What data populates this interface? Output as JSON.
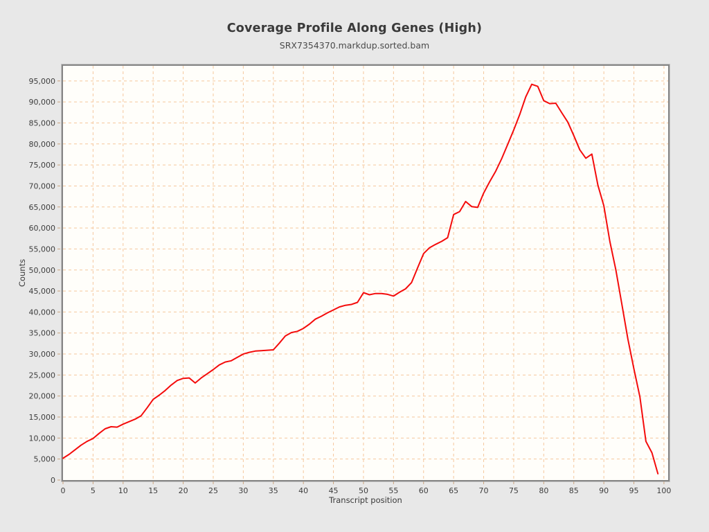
{
  "chart": {
    "title": "Coverage Profile Along Genes (High)",
    "subtitle": "SRX7354370.markdup.sorted.bam",
    "xlabel": "Transcript position",
    "ylabel": "Counts"
  },
  "chart_data": {
    "type": "line",
    "title": "Coverage Profile Along Genes (High)",
    "subtitle": "SRX7354370.markdup.sorted.bam",
    "xlabel": "Transcript position",
    "ylabel": "Counts",
    "x_start": 0,
    "x_step": 1,
    "x": [
      0,
      1,
      2,
      3,
      4,
      5,
      6,
      7,
      8,
      9,
      10,
      11,
      12,
      13,
      14,
      15,
      16,
      17,
      18,
      19,
      20,
      21,
      22,
      23,
      24,
      25,
      26,
      27,
      28,
      29,
      30,
      31,
      32,
      33,
      34,
      35,
      36,
      37,
      38,
      39,
      40,
      41,
      42,
      43,
      44,
      45,
      46,
      47,
      48,
      49,
      50,
      51,
      52,
      53,
      54,
      55,
      56,
      57,
      58,
      59,
      60,
      61,
      62,
      63,
      64,
      65,
      66,
      67,
      68,
      69,
      70,
      71,
      72,
      73,
      74,
      75,
      76,
      77,
      78,
      79,
      80,
      81,
      82,
      83,
      84,
      85,
      86,
      87,
      88,
      89,
      90,
      91,
      92,
      93,
      94,
      95,
      96,
      97,
      98,
      99
    ],
    "values": [
      5200,
      6100,
      7200,
      8300,
      9200,
      9900,
      11100,
      12200,
      12700,
      12600,
      13300,
      13900,
      14500,
      15300,
      17200,
      19200,
      20200,
      21300,
      22600,
      23700,
      24200,
      24300,
      23100,
      24300,
      25300,
      26300,
      27400,
      28100,
      28400,
      29200,
      30000,
      30400,
      30700,
      30800,
      30900,
      31000,
      32600,
      34300,
      35100,
      35400,
      36100,
      37100,
      38300,
      39000,
      39800,
      40500,
      41200,
      41600,
      41800,
      42300,
      44600,
      44100,
      44400,
      44400,
      44200,
      43800,
      44700,
      45500,
      47000,
      50500,
      53900,
      55300,
      56100,
      56800,
      57700,
      63200,
      63900,
      66300,
      65100,
      64900,
      68300,
      71000,
      73500,
      76500,
      79900,
      83300,
      87000,
      91200,
      94200,
      93700,
      90300,
      89600,
      89700,
      87400,
      85200,
      82000,
      78600,
      76600,
      77600,
      70200,
      65300,
      56800,
      50000,
      41800,
      33600,
      26500,
      19800,
      9200,
      6500,
      1500
    ],
    "x_ticks": [
      0,
      5,
      10,
      15,
      20,
      25,
      30,
      35,
      40,
      45,
      50,
      55,
      60,
      65,
      70,
      75,
      80,
      85,
      90,
      95,
      100
    ],
    "y_ticks": [
      0,
      5000,
      10000,
      15000,
      20000,
      25000,
      30000,
      35000,
      40000,
      45000,
      50000,
      55000,
      60000,
      65000,
      70000,
      75000,
      80000,
      85000,
      90000,
      95000
    ],
    "xlim": [
      0,
      100.7
    ],
    "ylim": [
      0,
      98600
    ],
    "grid": "dashed",
    "legend": "none",
    "line_color": "#f40b0b",
    "grid_color": "#f5c79c",
    "tick_color": "#caa27c",
    "border_color": "#858585",
    "plot_bg": "#fffefa",
    "outer_bg": "#e8e8e8"
  }
}
